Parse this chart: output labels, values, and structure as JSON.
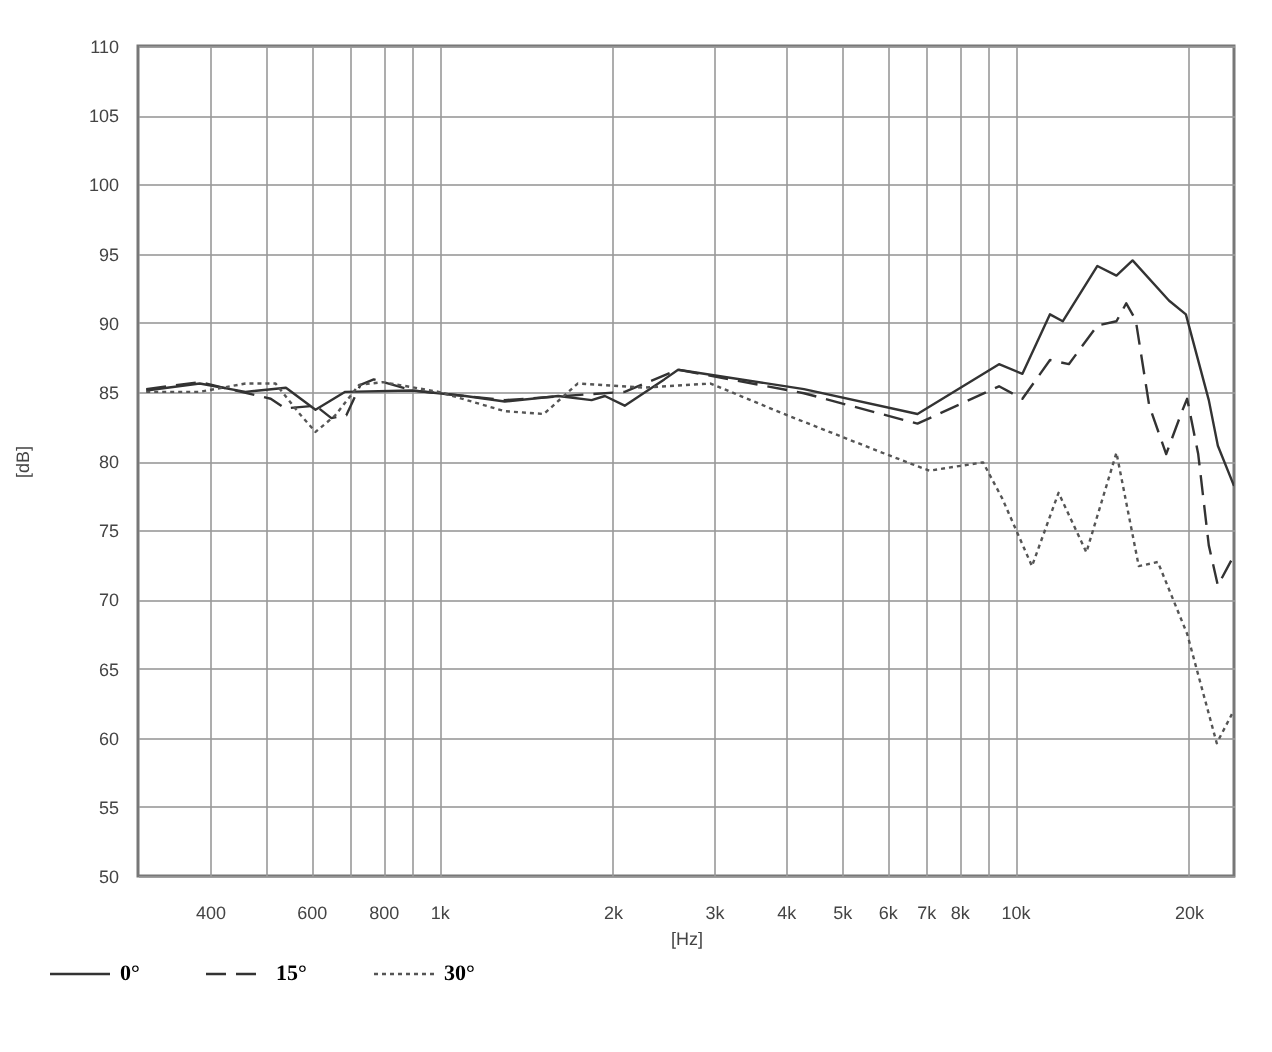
{
  "chart_data": {
    "type": "line",
    "xlabel": "[Hz]",
    "ylabel": "[dB]",
    "log": "x",
    "grid": true,
    "legend": "bottom left",
    "marker": "none",
    "xlim": [
      300,
      24000
    ],
    "ylim": [
      50,
      110
    ],
    "xticks": [
      400,
      {
        "value": 500,
        "label": null
      },
      600,
      {
        "value": 700,
        "label": null
      },
      800,
      {
        "value": 900,
        "label": null
      },
      {
        "value": 1000,
        "label": "1k"
      },
      {
        "value": 2000,
        "label": "2k"
      },
      {
        "value": 3000,
        "label": "3k"
      },
      {
        "value": 4000,
        "label": "4k"
      },
      {
        "value": 5000,
        "label": "5k"
      },
      {
        "value": 6000,
        "label": "6k"
      },
      {
        "value": 7000,
        "label": "7k"
      },
      {
        "value": 8000,
        "label": "8k"
      },
      {
        "value": 9000,
        "label": null
      },
      {
        "value": 10000,
        "label": "10k"
      },
      {
        "value": 20000,
        "label": "20k"
      }
    ],
    "yticks": [
      50,
      55,
      60,
      65,
      70,
      75,
      80,
      85,
      90,
      95,
      100,
      105,
      110
    ],
    "series": [
      {
        "name": "0°",
        "color": "#333333",
        "line_style": "solid",
        "x": [
          310,
          384,
          461,
          542,
          610,
          687,
          897,
          1110,
          1300,
          1610,
          1840,
          1940,
          2100,
          2460,
          2600,
          4300,
          6770,
          9380,
          10300,
          11500,
          12100,
          13900,
          15000,
          16000,
          18500,
          19800,
          21700,
          22500,
          24000
        ],
        "values": [
          85.1,
          85.6,
          85,
          85.3,
          83.7,
          85,
          85.1,
          84.7,
          84.3,
          84.7,
          84.4,
          84.7,
          84,
          85.9,
          86.6,
          85.2,
          83.4,
          87,
          86.3,
          90.6,
          90.1,
          94.1,
          93.4,
          94.5,
          91.6,
          90.6,
          84.4,
          81.1,
          78.2
        ]
      },
      {
        "name": "15°",
        "color": "#333333",
        "line_style": "dashed",
        "x": [
          310,
          384,
          510,
          540,
          610,
          650,
          690,
          730,
          770,
          900,
          1300,
          1650,
          2100,
          2600,
          4300,
          6770,
          9380,
          10300,
          11500,
          12400,
          13900,
          15000,
          15600,
          16200,
          17100,
          18300,
          19500,
          19900,
          20800,
          21700,
          22500,
          23800
        ],
        "values": [
          85.2,
          85.7,
          84.5,
          83.8,
          84,
          83.1,
          83.3,
          85.5,
          85.9,
          85.1,
          84.4,
          84.7,
          85,
          86.6,
          84.9,
          82.7,
          85.4,
          84.5,
          87.3,
          87,
          89.8,
          90.1,
          91.4,
          90.2,
          84,
          80.5,
          83.6,
          84.5,
          80.5,
          73.9,
          71,
          72.9
        ]
      },
      {
        "name": "30°",
        "color": "#555555",
        "line_style": "dotted",
        "x": [
          310,
          384,
          461,
          520,
          570,
          610,
          660,
          726,
          798,
          998,
          1300,
          1520,
          1740,
          2270,
          2960,
          3970,
          6050,
          7100,
          8800,
          9500,
          10700,
          11900,
          13300,
          15000,
          16400,
          17700,
          19900,
          22400,
          23800
        ],
        "values": [
          85,
          85,
          85.6,
          85.6,
          83.5,
          82.1,
          83.3,
          85.5,
          85.7,
          85,
          83.6,
          83.4,
          85.6,
          85.3,
          85.6,
          83.4,
          80.4,
          79.3,
          79.9,
          77.3,
          72.4,
          77.7,
          73.4,
          80.6,
          72.4,
          72.7,
          67.5,
          59.6,
          61.7
        ]
      }
    ]
  }
}
